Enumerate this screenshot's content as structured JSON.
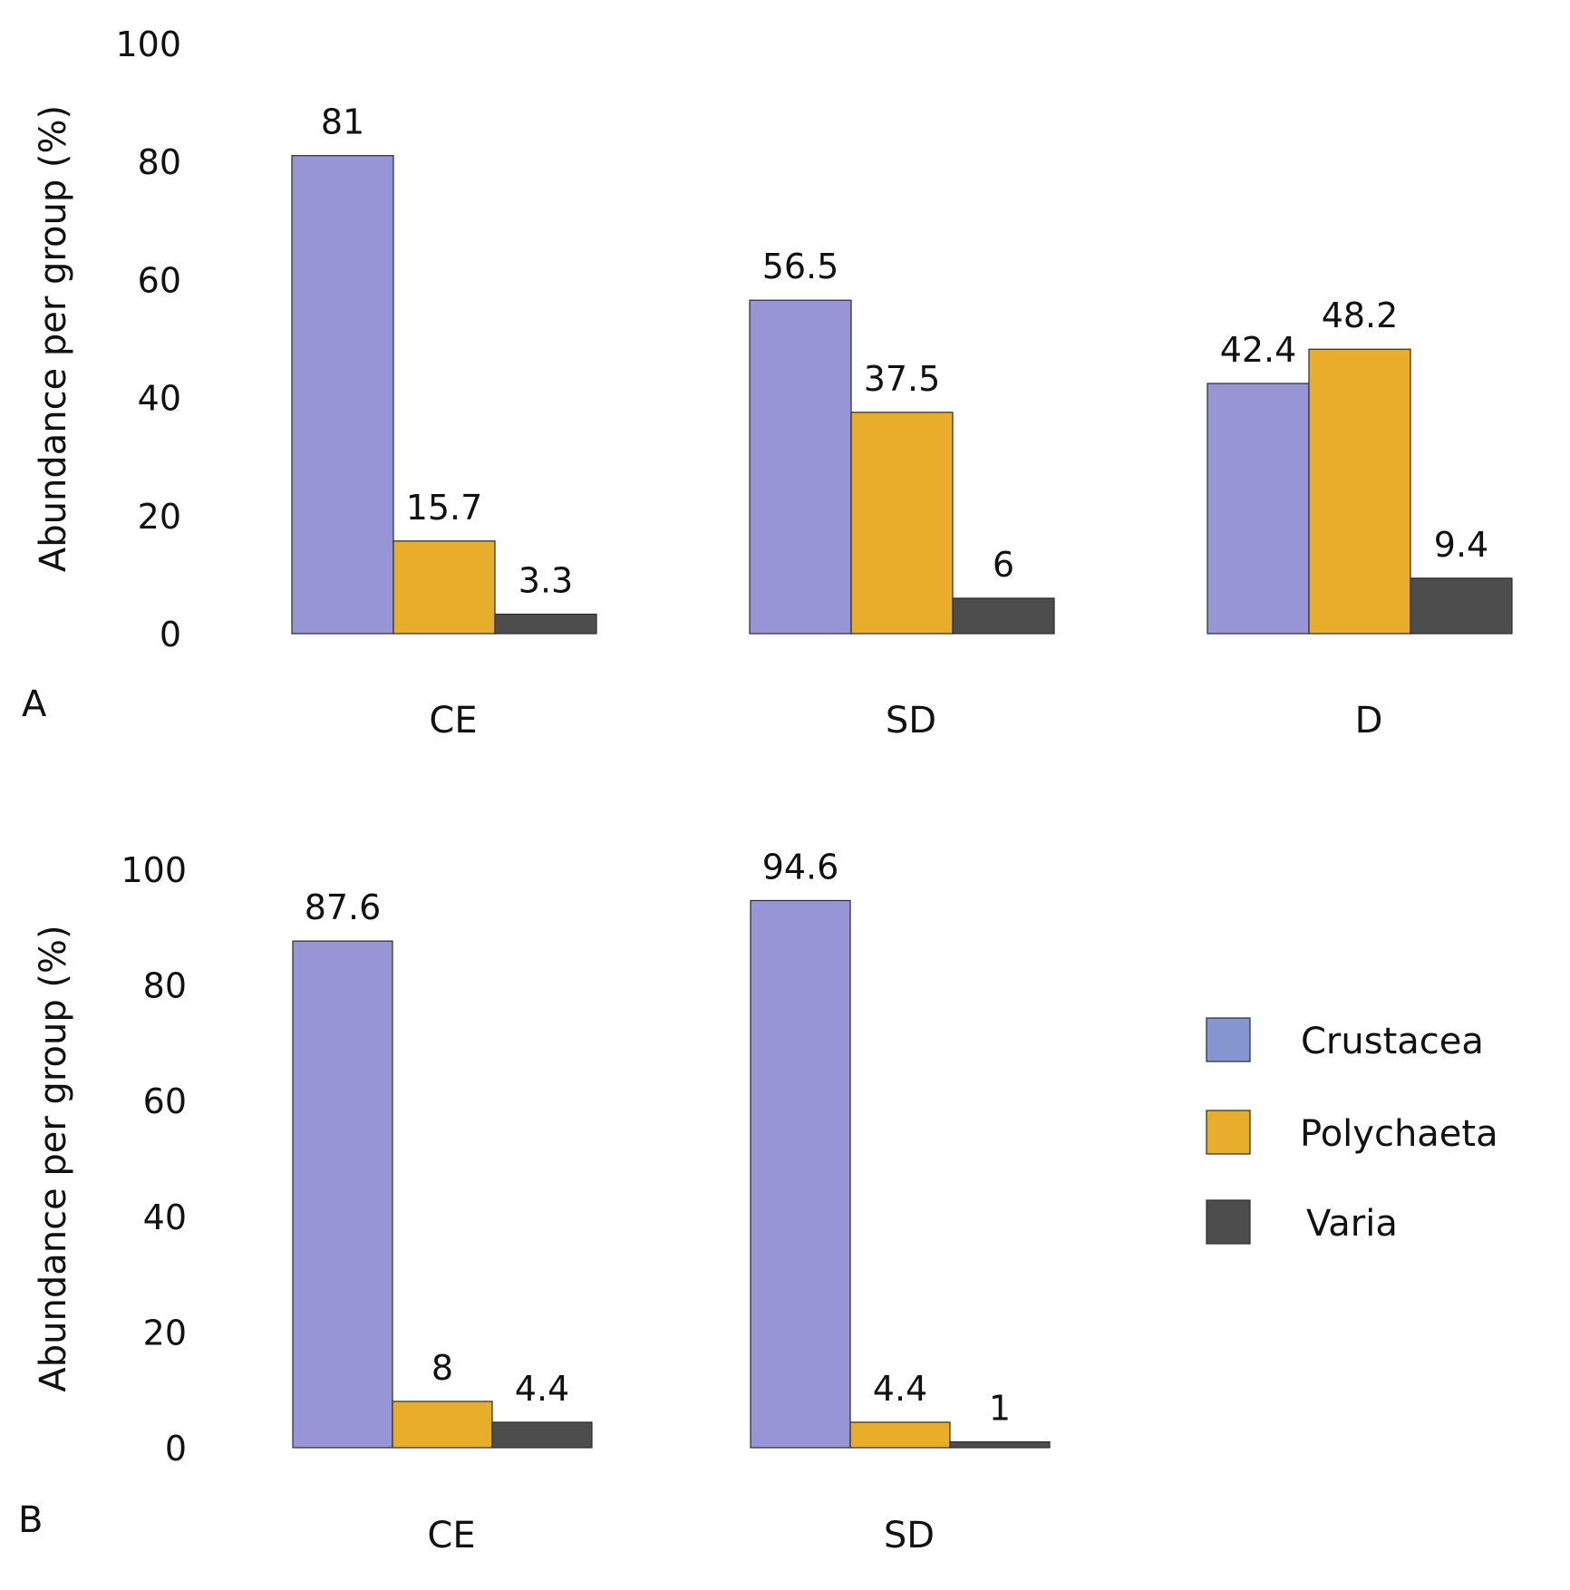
{
  "colors": {
    "Crustacea": "#9795d5",
    "Polychaeta": "#e8ad2b",
    "Varia": "#4d4d4d",
    "legend_Crustacea": "#8597d1"
  },
  "legend": {
    "items": [
      "Crustacea",
      "Polychaeta",
      "Varia"
    ]
  },
  "chart_data": [
    {
      "type": "bar",
      "panel": "A",
      "categories": [
        "CE",
        "SD",
        "D"
      ],
      "series": [
        {
          "name": "Crustacea",
          "values": [
            81,
            56.5,
            42.4
          ]
        },
        {
          "name": "Polychaeta",
          "values": [
            15.7,
            37.5,
            48.2
          ]
        },
        {
          "name": "Varia",
          "values": [
            3.3,
            6,
            9.4
          ]
        }
      ],
      "value_labels": [
        [
          "81",
          "56.5",
          "42.4"
        ],
        [
          "15.7",
          "37.5",
          "48.2"
        ],
        [
          "3.3",
          "6",
          "9.4"
        ]
      ],
      "ylabel": "Abundance per group (%)",
      "ylim": [
        0,
        100
      ],
      "yticks": [
        0,
        20,
        40,
        60,
        80,
        100
      ],
      "ytick_labels": [
        "0",
        "20",
        "40",
        "60",
        "80",
        "100"
      ],
      "grid": false
    },
    {
      "type": "bar",
      "panel": "B",
      "categories": [
        "CE",
        "SD"
      ],
      "series": [
        {
          "name": "Crustacea",
          "values": [
            87.6,
            94.6
          ]
        },
        {
          "name": "Polychaeta",
          "values": [
            8,
            4.4
          ]
        },
        {
          "name": "Varia",
          "values": [
            4.4,
            1
          ]
        }
      ],
      "value_labels": [
        [
          "87.6",
          "94.6"
        ],
        [
          "8",
          "4.4"
        ],
        [
          "4.4",
          "1"
        ]
      ],
      "ylabel": "Abundance per group (%)",
      "ylim": [
        0,
        100
      ],
      "yticks": [
        0,
        20,
        40,
        60,
        80,
        100
      ],
      "ytick_labels": [
        "0",
        "20",
        "40",
        "60",
        "80",
        "100"
      ],
      "grid": false,
      "legend_position": "right"
    }
  ]
}
